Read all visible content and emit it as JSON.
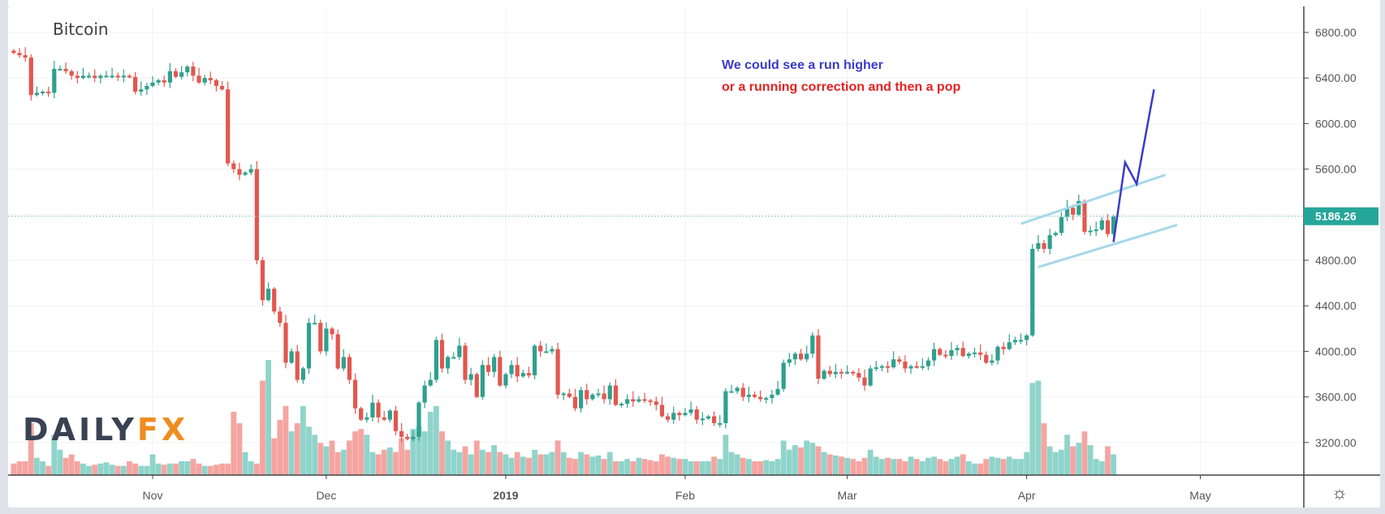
{
  "chart_data": {
    "type": "candlestick",
    "title": "Bitcoin",
    "ylabel": "",
    "xlabel": "",
    "ylim": [
      2950,
      6950
    ],
    "yticks": [
      "6800.00",
      "6400.00",
      "6000.00",
      "5600.00",
      "5200.00",
      "4800.00",
      "4400.00",
      "4000.00",
      "3600.00",
      "3200.00"
    ],
    "ytick_values": [
      6800,
      6400,
      6000,
      5600,
      5200,
      4800,
      4400,
      4000,
      3600,
      3200
    ],
    "xticks": [
      {
        "label": "Nov",
        "day": 24,
        "bold": false
      },
      {
        "label": "Dec",
        "day": 54,
        "bold": false
      },
      {
        "label": "2019",
        "day": 85,
        "bold": true
      },
      {
        "label": "Feb",
        "day": 116,
        "bold": false
      },
      {
        "label": "Mar",
        "day": 144,
        "bold": false
      },
      {
        "label": "Apr",
        "day": 175,
        "bold": false
      },
      {
        "label": "May",
        "day": 205,
        "bold": false
      }
    ],
    "first_day": "2018-10-08",
    "last_price": "5186.26",
    "last_price_value": 5186.26,
    "close": [
      6620,
      6600,
      6580,
      6250,
      6270,
      6280,
      6270,
      6480,
      6480,
      6460,
      6420,
      6400,
      6420,
      6420,
      6400,
      6420,
      6420,
      6420,
      6410,
      6420,
      6410,
      6280,
      6300,
      6330,
      6360,
      6380,
      6360,
      6460,
      6410,
      6450,
      6500,
      6420,
      6360,
      6400,
      6380,
      6330,
      6300,
      5650,
      5600,
      5550,
      5570,
      5600,
      4800,
      4450,
      4550,
      4350,
      4250,
      3900,
      4000,
      3750,
      3850,
      4250,
      4250,
      4000,
      4200,
      4150,
      3850,
      3950,
      3750,
      3500,
      3400,
      3420,
      3550,
      3420,
      3400,
      3480,
      3300,
      3250,
      3230,
      3250,
      3550,
      3700,
      3750,
      4100,
      3850,
      3950,
      3950,
      4050,
      3750,
      3800,
      3600,
      3880,
      3820,
      3950,
      3700,
      3800,
      3880,
      3780,
      3810,
      3790,
      4050,
      4000,
      4000,
      4020,
      3620,
      3630,
      3600,
      3500,
      3660,
      3580,
      3620,
      3630,
      3580,
      3700,
      3530,
      3540,
      3580,
      3560,
      3580,
      3570,
      3560,
      3530,
      3430,
      3400,
      3460,
      3440,
      3460,
      3490,
      3400,
      3410,
      3430,
      3370,
      3370,
      3650,
      3650,
      3680,
      3600,
      3620,
      3600,
      3580,
      3590,
      3620,
      3670,
      3900,
      3930,
      3980,
      3930,
      3980,
      4140,
      3760,
      3830,
      3800,
      3820,
      3810,
      3820,
      3810,
      3770,
      3700,
      3850,
      3860,
      3870,
      3860,
      3930,
      3910,
      3850,
      3870,
      3860,
      3870,
      3920,
      4020,
      3970,
      3960,
      4010,
      4030,
      3960,
      3980,
      3990,
      3970,
      3900,
      3920,
      4040,
      4020,
      4080,
      4100,
      4100,
      4140,
      4900,
      4950,
      4900,
      5020,
      5040,
      5180,
      5260,
      5200,
      5320,
      5050,
      5060,
      5070,
      5150,
      5030,
      5186.26
    ],
    "volume": [
      10,
      12,
      12,
      45,
      15,
      12,
      8,
      35,
      22,
      15,
      18,
      12,
      10,
      8,
      9,
      10,
      11,
      9,
      8,
      8,
      12,
      10,
      8,
      8,
      18,
      10,
      9,
      10,
      10,
      12,
      12,
      14,
      10,
      8,
      8,
      9,
      10,
      10,
      55,
      45,
      20,
      12,
      10,
      82,
      100,
      32,
      48,
      60,
      38,
      45,
      60,
      42,
      35,
      28,
      25,
      30,
      20,
      22,
      30,
      38,
      40,
      35,
      20,
      18,
      22,
      24,
      20,
      32,
      22,
      40,
      42,
      38,
      55,
      60,
      38,
      30,
      22,
      20,
      25,
      18,
      30,
      22,
      20,
      26,
      20,
      18,
      15,
      20,
      16,
      15,
      22,
      18,
      18,
      20,
      30,
      20,
      15,
      14,
      20,
      18,
      16,
      17,
      14,
      20,
      12,
      12,
      14,
      12,
      15,
      14,
      13,
      12,
      18,
      16,
      15,
      14,
      14,
      12,
      12,
      12,
      12,
      16,
      14,
      35,
      20,
      18,
      15,
      14,
      12,
      12,
      13,
      12,
      14,
      30,
      22,
      26,
      24,
      30,
      28,
      25,
      20,
      18,
      17,
      16,
      15,
      14,
      12,
      15,
      22,
      16,
      14,
      15,
      14,
      14,
      12,
      16,
      14,
      12,
      15,
      16,
      14,
      12,
      14,
      16,
      18,
      12,
      10,
      10,
      14,
      16,
      15,
      14,
      16,
      14,
      14,
      20,
      80,
      82,
      45,
      25,
      20,
      22,
      35,
      25,
      28,
      38,
      26,
      14,
      12,
      25,
      18
    ],
    "annotations": {
      "line1": "We could see a run higher",
      "line2": "or a running correction and then a pop",
      "channel_upper": [
        [
          174,
          5120
        ],
        [
          199,
          5550
        ]
      ],
      "channel_lower": [
        [
          177,
          4740
        ],
        [
          201,
          5110
        ]
      ],
      "projection": [
        [
          190,
          4960
        ],
        [
          192,
          5660
        ],
        [
          194,
          5470
        ],
        [
          197,
          6300
        ]
      ]
    },
    "colors": {
      "up": "#2fa08f",
      "down": "#e2574f",
      "up_volume": "#8fd4cb",
      "down_volume": "#f5a5a1",
      "channel": "#a6d8e8",
      "projection": "#3b3bc8",
      "price_label": "#26a69a"
    }
  },
  "logo": {
    "part1": "DAILY",
    "part2": "FX"
  },
  "settings_icon": "gear-icon"
}
